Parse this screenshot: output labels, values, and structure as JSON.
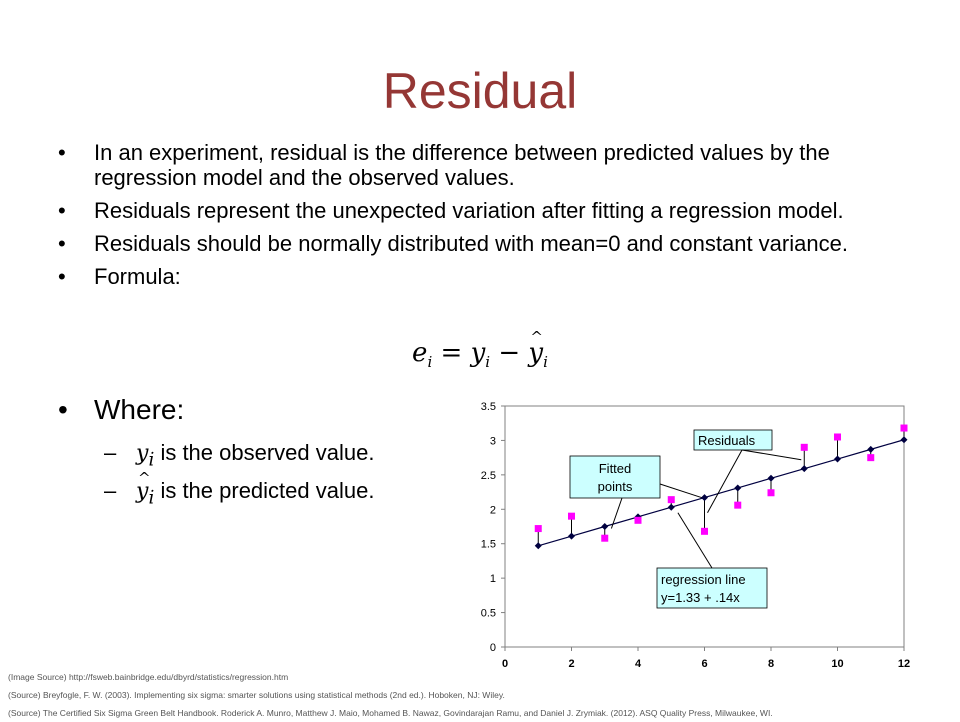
{
  "slide": {
    "title": "Residual",
    "bullets": [
      "In an experiment, residual is the difference between predicted values by the regression model and the observed values.",
      "Residuals represent the unexpected variation after fitting a regression model.",
      "Residuals should be normally distributed with mean=0 and constant variance.",
      "Formula:"
    ],
    "formula": {
      "e": "e",
      "y": "y",
      "yhat": "y",
      "sub": "i",
      "eq": "=",
      "minus": "−"
    },
    "where": "Where:",
    "sub_items": [
      {
        "var": "y",
        "sub": "i",
        "text": "is the observed value."
      },
      {
        "var": "y",
        "sub": "i",
        "text": "is the predicted value."
      }
    ],
    "sources": [
      "(Image Source) http://fsweb.bainbridge.edu/dbyrd/statistics/regression.htm",
      "(Source) Breyfogle, F. W. (2003). Implementing six sigma: smarter solutions using statistical methods (2nd ed.). Hoboken, NJ: Wiley.",
      "(Source) The Certified Six Sigma Green Belt Handbook. Roderick A. Munro, Matthew J. Maio, Mohamed B. Nawaz, Govindarajan Ramu, and Daniel J. Zrymiak. (2012). ASQ Quality Press, Milwaukee, WI."
    ]
  },
  "chart_data": {
    "type": "scatter",
    "xlim": [
      0,
      12
    ],
    "ylim": [
      0,
      3.5
    ],
    "x_ticks": [
      "0",
      "2",
      "4",
      "6",
      "8",
      "10",
      "12"
    ],
    "y_ticks": [
      "0",
      "0.5",
      "1",
      "1.5",
      "2",
      "2.5",
      "3",
      "3.5"
    ],
    "grid": false,
    "series": [
      {
        "kind": "observed",
        "color": "#ff00ff",
        "x": [
          1,
          2,
          3,
          4,
          5,
          6,
          7,
          8,
          9,
          10,
          11,
          12
        ],
        "y": [
          1.72,
          1.9,
          1.58,
          1.84,
          2.14,
          1.68,
          2.06,
          2.24,
          2.9,
          3.05,
          2.75,
          3.18
        ]
      },
      {
        "kind": "fitted",
        "color": "#000040",
        "x": [
          1,
          2,
          3,
          4,
          5,
          6,
          7,
          8,
          9,
          10,
          11,
          12
        ],
        "y": [
          1.47,
          1.61,
          1.75,
          1.89,
          2.03,
          2.17,
          2.31,
          2.45,
          2.59,
          2.73,
          2.87,
          3.01
        ]
      }
    ],
    "annotations": [
      {
        "text": "Residuals"
      },
      {
        "text": "Fitted points",
        "lines": [
          "Fitted",
          "points"
        ]
      },
      {
        "text": "regression line y=1.33 + .14x",
        "lines": [
          "regression line",
          "y=1.33 + .14x"
        ]
      }
    ],
    "colors": {
      "callout_fill": "#ccffff",
      "axis": "#808080"
    }
  }
}
